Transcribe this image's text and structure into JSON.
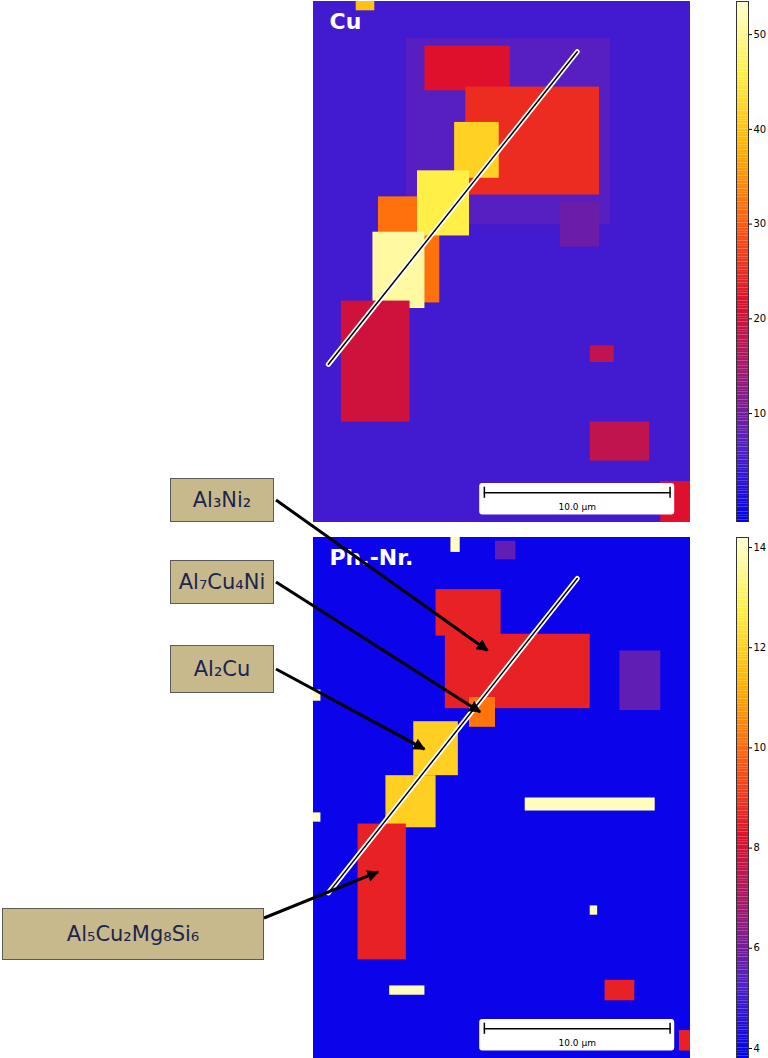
{
  "chart_data": [
    {
      "type": "heatmap",
      "title": "Cu",
      "xlim": [
        0,
        20.3
      ],
      "ylim": [
        0,
        28
      ],
      "tick_labels": false,
      "cells": [
        {
          "x1": 0,
          "x2": 20.3,
          "y1": 0,
          "y2": 28,
          "value": 5
        },
        {
          "x1": 5,
          "x2": 16,
          "y1": 2,
          "y2": 12,
          "value": 7
        },
        {
          "x1": 2.3,
          "x2": 3.3,
          "y1": 0,
          "y2": 0.5,
          "value": 40
        },
        {
          "x1": 6.0,
          "x2": 10.6,
          "y1": 2.4,
          "y2": 4.8,
          "value": 22
        },
        {
          "x1": 8.2,
          "x2": 15.4,
          "y1": 4.6,
          "y2": 10.4,
          "value": 25
        },
        {
          "x1": 13.3,
          "x2": 15.4,
          "y1": 10.8,
          "y2": 13.2,
          "value": 9
        },
        {
          "x1": 7.6,
          "x2": 10.0,
          "y1": 6.5,
          "y2": 9.5,
          "value": 42
        },
        {
          "x1": 3.5,
          "x2": 6.8,
          "y1": 10.5,
          "y2": 16.2,
          "value": 32
        },
        {
          "x1": 5.6,
          "x2": 8.4,
          "y1": 9.1,
          "y2": 12.6,
          "value": 46
        },
        {
          "x1": 3.2,
          "x2": 6.0,
          "y1": 12.4,
          "y2": 16.5,
          "value": 51
        },
        {
          "x1": 1.5,
          "x2": 5.2,
          "y1": 16.1,
          "y2": 22.6,
          "value": 20
        },
        {
          "x1": 14.9,
          "x2": 16.2,
          "y1": 18.5,
          "y2": 19.4,
          "value": 18
        },
        {
          "x1": 14.9,
          "x2": 18.1,
          "y1": 22.6,
          "y2": 24.7,
          "value": 18
        },
        {
          "x1": 18.7,
          "x2": 20.3,
          "y1": 25.8,
          "y2": 28,
          "value": 22
        }
      ],
      "colorbar": {
        "range": [
          -1.5,
          53.5
        ],
        "ticks": [
          10,
          20,
          30,
          40,
          50
        ]
      },
      "profile_line": {
        "x": [
          0.8,
          14.2
        ],
        "y": [
          19.5,
          2.7
        ]
      },
      "scale_bar": {
        "value": 10,
        "label": "10.0 µm"
      }
    },
    {
      "type": "heatmap",
      "title": "Ph.-Nr.",
      "xlim": [
        0,
        20.3
      ],
      "ylim": [
        0,
        28
      ],
      "tick_labels": false,
      "cells": [
        {
          "x1": 0,
          "x2": 20.3,
          "y1": 0,
          "y2": 28,
          "value": 4
        },
        {
          "x1": 6.6,
          "x2": 10.1,
          "y1": 2.8,
          "y2": 5.3,
          "value": 8.6
        },
        {
          "x1": 7.1,
          "x2": 14.9,
          "y1": 5.2,
          "y2": 9.2,
          "value": 8.6
        },
        {
          "x1": 8.4,
          "x2": 9.8,
          "y1": 8.6,
          "y2": 10.2,
          "value": 10.2
        },
        {
          "x1": 5.4,
          "x2": 7.8,
          "y1": 9.9,
          "y2": 12.8,
          "value": 12
        },
        {
          "x1": 3.9,
          "x2": 6.6,
          "y1": 12.8,
          "y2": 15.6,
          "value": 12
        },
        {
          "x1": 2.4,
          "x2": 5.0,
          "y1": 15.4,
          "y2": 22.7,
          "value": 8.6
        },
        {
          "x1": 16.5,
          "x2": 18.7,
          "y1": 6.1,
          "y2": 9.3,
          "value": 5.6
        },
        {
          "x1": 11.4,
          "x2": 18.4,
          "y1": 14.0,
          "y2": 14.7,
          "value": 14
        },
        {
          "x1": 14.9,
          "x2": 15.3,
          "y1": 19.8,
          "y2": 20.3,
          "value": 14
        },
        {
          "x1": 4.1,
          "x2": 6.0,
          "y1": 24.1,
          "y2": 24.6,
          "value": 14
        },
        {
          "x1": 7.4,
          "x2": 7.9,
          "y1": 0,
          "y2": 0.8,
          "value": 14
        },
        {
          "x1": 9.8,
          "x2": 10.9,
          "y1": 0.2,
          "y2": 1.2,
          "value": 5.6
        },
        {
          "x1": 15.7,
          "x2": 17.3,
          "y1": 23.8,
          "y2": 24.9,
          "value": 8.6
        },
        {
          "x1": 19.7,
          "x2": 20.3,
          "y1": 26.5,
          "y2": 27.6,
          "value": 8.6
        },
        {
          "x1": 0,
          "x2": 0.4,
          "y1": 8.2,
          "y2": 8.8,
          "value": 14
        },
        {
          "x1": 0,
          "x2": 0.4,
          "y1": 14.8,
          "y2": 15.3,
          "value": 14
        }
      ],
      "colorbar": {
        "range": [
          3.8,
          14.2
        ],
        "ticks": [
          4,
          6,
          8,
          10,
          12,
          14
        ]
      },
      "profile_line": {
        "x": [
          0.8,
          14.2
        ],
        "y": [
          19.1,
          2.2
        ]
      },
      "scale_bar": {
        "value": 10,
        "label": "10.0 µm"
      },
      "annotations": [
        {
          "text": "Al₃Ni₂",
          "x": 9.4,
          "y": 6.1
        },
        {
          "text": "Al₇Cu₄Ni",
          "x": 9.0,
          "y": 9.4
        },
        {
          "text": "Al₂Cu",
          "x": 6.0,
          "y": 11.4
        },
        {
          "text": "Al₅Cu₂Mg₈Si₆",
          "x": 3.5,
          "y": 18.0
        }
      ]
    }
  ]
}
